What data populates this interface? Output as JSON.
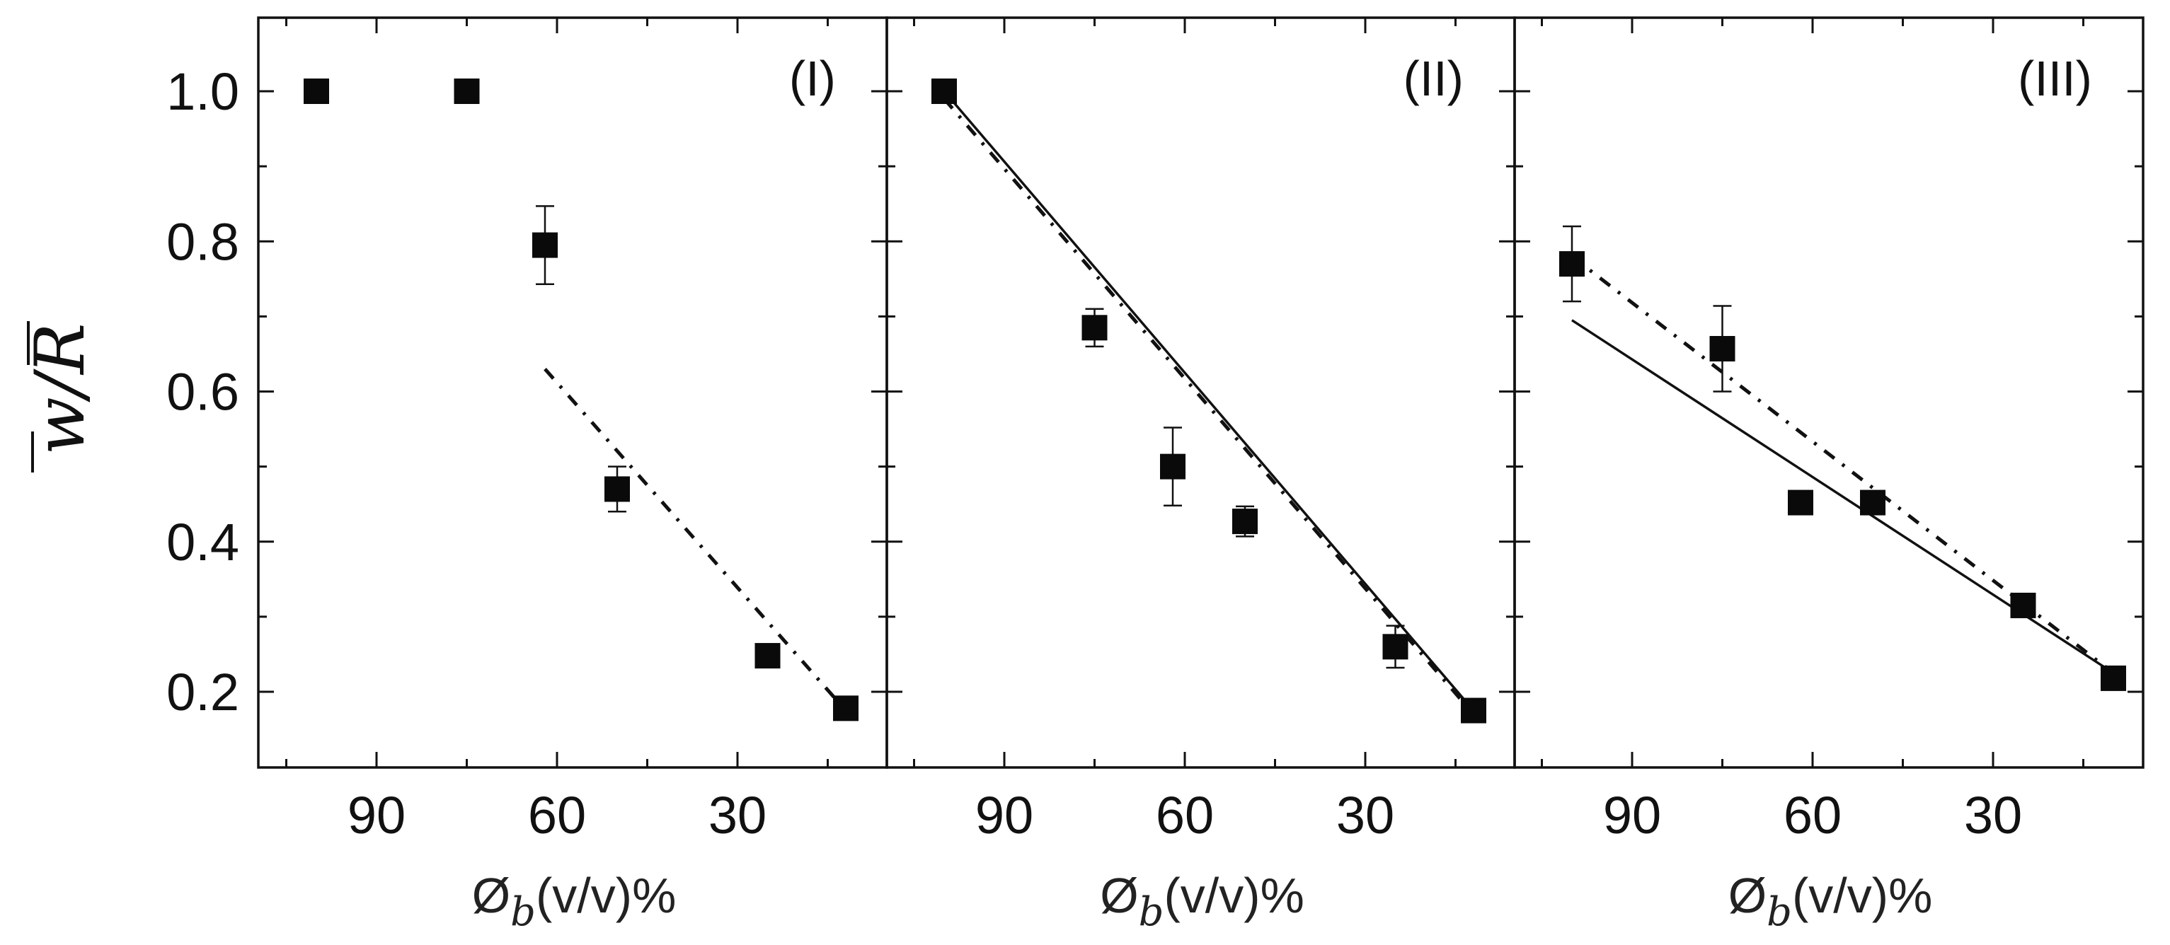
{
  "chart_data": {
    "type": "scatter",
    "ylabel": "w/R",
    "ylim": [
      0.1,
      1.1
    ],
    "yticks": [
      "0.2",
      "0.4",
      "0.6",
      "0.8",
      "1.0"
    ],
    "xlim": [
      110,
      5
    ],
    "xticks": [
      "90",
      "60",
      "30"
    ],
    "xlabel": "Ø",
    "xlabel_sub": "b",
    "xlabel_suffix": "(v/v)%",
    "panels": [
      {
        "label": "(I)",
        "points": [
          {
            "x": 100,
            "y": 1.0,
            "err": 0
          },
          {
            "x": 75,
            "y": 1.0,
            "err": 0
          },
          {
            "x": 62,
            "y": 0.795,
            "err": 0.052
          },
          {
            "x": 50,
            "y": 0.47,
            "err": 0.03
          },
          {
            "x": 25,
            "y": 0.248,
            "err": 0.012
          },
          {
            "x": 12,
            "y": 0.178,
            "err": 0
          }
        ],
        "lines": [
          {
            "style": "dash-dot",
            "x": [
              62,
              12
            ],
            "y": [
              0.63,
              0.175
            ]
          }
        ]
      },
      {
        "label": "(II)",
        "points": [
          {
            "x": 100,
            "y": 1.0,
            "err": 0
          },
          {
            "x": 75,
            "y": 0.685,
            "err": 0.025
          },
          {
            "x": 62,
            "y": 0.5,
            "err": 0.052
          },
          {
            "x": 50,
            "y": 0.427,
            "err": 0.02
          },
          {
            "x": 25,
            "y": 0.26,
            "err": 0.028
          },
          {
            "x": 12,
            "y": 0.175,
            "err": 0
          }
        ],
        "lines": [
          {
            "style": "solid",
            "x": [
              100,
              12
            ],
            "y": [
              1.0,
              0.175
            ]
          },
          {
            "style": "dash-dot",
            "x": [
              100,
              12
            ],
            "y": [
              0.99,
              0.17
            ]
          }
        ]
      },
      {
        "label": "(III)",
        "points": [
          {
            "x": 100,
            "y": 0.77,
            "err": 0.05
          },
          {
            "x": 75,
            "y": 0.657,
            "err": 0.057
          },
          {
            "x": 62,
            "y": 0.452,
            "err": 0
          },
          {
            "x": 50,
            "y": 0.452,
            "err": 0
          },
          {
            "x": 25,
            "y": 0.315,
            "err": 0
          },
          {
            "x": 10,
            "y": 0.218,
            "err": 0
          }
        ],
        "lines": [
          {
            "style": "solid",
            "x": [
              100,
              10
            ],
            "y": [
              0.695,
              0.225
            ]
          },
          {
            "style": "dash-dot",
            "x": [
              100,
              10
            ],
            "y": [
              0.78,
              0.225
            ]
          }
        ]
      }
    ]
  }
}
